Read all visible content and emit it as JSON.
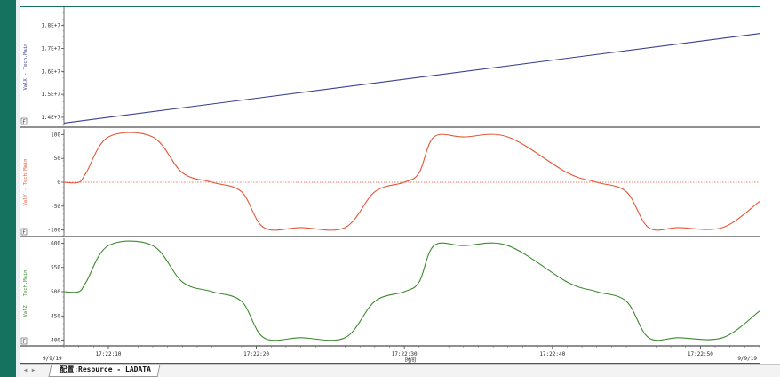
{
  "chart_data": [
    {
      "type": "line",
      "ylabel": "ValX - Tech.Main",
      "yticks": [
        "1.8E+7",
        "1.7E+7",
        "1.6E+7",
        "1.5E+7",
        "1.4E+7"
      ],
      "ylim": [
        13650000,
        18800000
      ],
      "color": "#3a3f8f",
      "x": [
        0,
        47
      ],
      "y": [
        13750000,
        17650000
      ]
    },
    {
      "type": "line",
      "ylabel": "ValY - Tech.Main",
      "yticks": [
        "100",
        "50",
        "0",
        "-50",
        "-100"
      ],
      "ylim": [
        -112,
        112
      ],
      "color": "#e0583a",
      "zero_line": true,
      "x": [
        0,
        1,
        1.5,
        3,
        6,
        8,
        10,
        12,
        13.5,
        16,
        19,
        21,
        23,
        24,
        25,
        27,
        30,
        34,
        36,
        38,
        39.5,
        41.5,
        44.5,
        47
      ],
      "y": [
        0,
        0,
        20,
        95,
        95,
        20,
        0,
        -20,
        -95,
        -95,
        -95,
        -20,
        0,
        20,
        95,
        95,
        95,
        20,
        0,
        -20,
        -95,
        -95,
        -95,
        -40
      ]
    },
    {
      "type": "line",
      "ylabel": "ValZ - Tech.Main",
      "yticks": [
        "600",
        "550",
        "500",
        "450",
        "400"
      ],
      "ylim": [
        390,
        610
      ],
      "color": "#3c8a2e",
      "x": [
        0,
        1,
        1.5,
        3,
        6,
        8,
        10,
        12,
        13.5,
        16,
        19,
        21,
        23,
        24,
        25,
        27,
        30,
        34,
        36,
        38,
        39.5,
        41.5,
        44.5,
        47
      ],
      "y": [
        500,
        500,
        520,
        595,
        595,
        520,
        500,
        480,
        405,
        405,
        405,
        480,
        500,
        520,
        595,
        595,
        595,
        520,
        500,
        480,
        405,
        405,
        405,
        460
      ]
    }
  ],
  "time_axis": {
    "ticks": [
      {
        "label": "17:22:10",
        "t": 3
      },
      {
        "label": "17:22:20",
        "t": 13
      },
      {
        "label": "17:22:30",
        "t": 23
      },
      {
        "label": "17:22:40",
        "t": 33
      },
      {
        "label": "17:22:50",
        "t": 43
      }
    ],
    "date_left": "9/9/19",
    "date_right": "9/9/19",
    "xlabel": "时间"
  },
  "panel_marker": "F",
  "tabs": {
    "active_label": "配置:Resource - LADATA"
  },
  "colors": {
    "frame": "#15725f",
    "grid": "#000000"
  }
}
